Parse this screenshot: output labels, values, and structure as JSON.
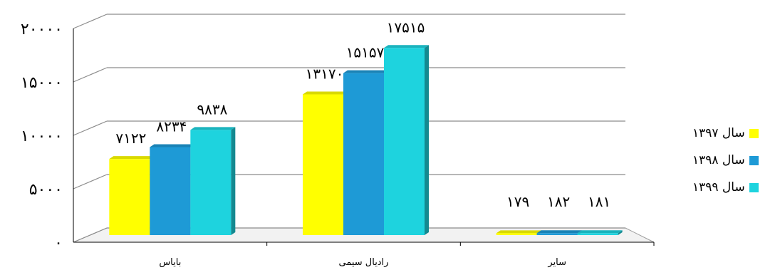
{
  "chart_data": {
    "type": "bar",
    "categories": [
      "بایاس",
      "رادیال سیمی",
      "سایر"
    ],
    "series": [
      {
        "name": "سال ۱۳۹۷",
        "color": "#ffff00",
        "values": [
          7122,
          13170,
          179
        ],
        "labels": [
          "۷۱۲۲",
          "۱۳۱۷۰",
          "۱۷۹"
        ]
      },
      {
        "name": "سال ۱۳۹۸",
        "color": "#1e9ad6",
        "values": [
          8234,
          15157,
          182
        ],
        "labels": [
          "۸۲۳۴",
          "۱۵۱۵۷",
          "۱۸۲"
        ]
      },
      {
        "name": "سال ۱۳۹۹",
        "color": "#1ed3de",
        "values": [
          9838,
          17515,
          181
        ],
        "labels": [
          "۹۸۳۸",
          "۱۷۵۱۵",
          "۱۸۱"
        ]
      }
    ],
    "ylim": [
      0,
      20000
    ],
    "yticks": [
      0,
      5000,
      10000,
      15000,
      20000
    ],
    "ytick_labels": [
      "۰",
      "۵۰۰۰",
      "۱۰۰۰۰",
      "۱۵۰۰۰",
      "۲۰۰۰۰"
    ],
    "grid": true,
    "legend_position": "right"
  }
}
